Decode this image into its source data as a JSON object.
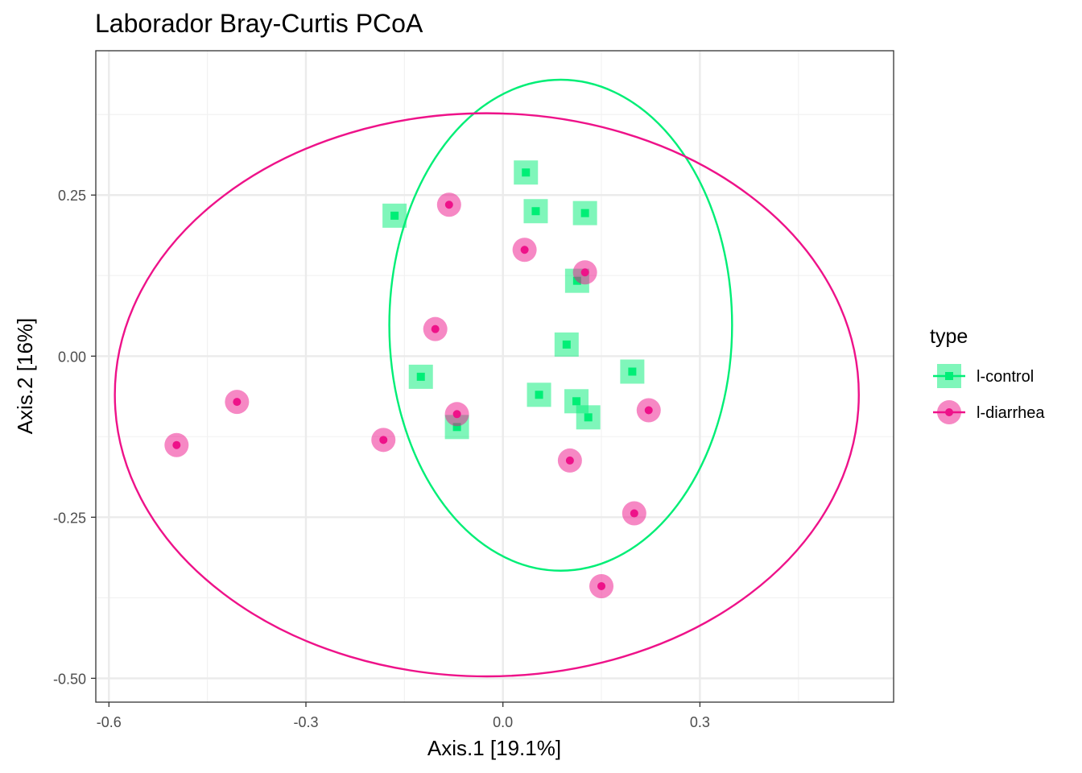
{
  "chart_data": {
    "type": "scatter",
    "title": "Laborador Bray-Curtis PCoA",
    "xlabel": "Axis.1   [19.1%]",
    "ylabel": "Axis.2   [16%]",
    "xlim": [
      -0.62,
      0.595
    ],
    "ylim": [
      -0.537,
      0.474
    ],
    "x_ticks": [
      -0.6,
      -0.3,
      0.0,
      0.3
    ],
    "x_tick_labels": [
      "-0.6",
      "-0.3",
      "0.0",
      "0.3"
    ],
    "y_ticks": [
      -0.5,
      -0.25,
      0.0,
      0.25
    ],
    "y_tick_labels": [
      "-0.50",
      "-0.25",
      "0.00",
      "0.25"
    ],
    "grid": true,
    "legend": {
      "title": "type",
      "position": "right"
    },
    "series": [
      {
        "name": "l-control",
        "color": "#00ee76",
        "marker": "square",
        "points": [
          [
            0.035,
            0.285
          ],
          [
            -0.165,
            0.218
          ],
          [
            0.05,
            0.225
          ],
          [
            0.125,
            0.222
          ],
          [
            0.113,
            0.117
          ],
          [
            0.097,
            0.018
          ],
          [
            -0.125,
            -0.032
          ],
          [
            0.197,
            -0.024
          ],
          [
            0.055,
            -0.06
          ],
          [
            0.112,
            -0.07
          ],
          [
            0.13,
            -0.095
          ],
          [
            -0.07,
            -0.11
          ]
        ],
        "ellipse": {
          "cx": 0.088,
          "cy": 0.048,
          "rx": 0.261,
          "ry": 0.381
        }
      },
      {
        "name": "l-diarrhea",
        "color": "#ee1289",
        "marker": "circle",
        "points": [
          [
            -0.082,
            0.235
          ],
          [
            0.033,
            0.165
          ],
          [
            0.125,
            0.13
          ],
          [
            -0.103,
            0.042
          ],
          [
            -0.405,
            -0.071
          ],
          [
            -0.497,
            -0.138
          ],
          [
            -0.182,
            -0.13
          ],
          [
            -0.07,
            -0.09
          ],
          [
            0.102,
            -0.162
          ],
          [
            0.222,
            -0.084
          ],
          [
            0.2,
            -0.244
          ],
          [
            0.15,
            -0.357
          ]
        ],
        "ellipse": {
          "cx": -0.0245,
          "cy": -0.06,
          "rx": 0.5665,
          "ry": 0.437
        }
      }
    ]
  }
}
